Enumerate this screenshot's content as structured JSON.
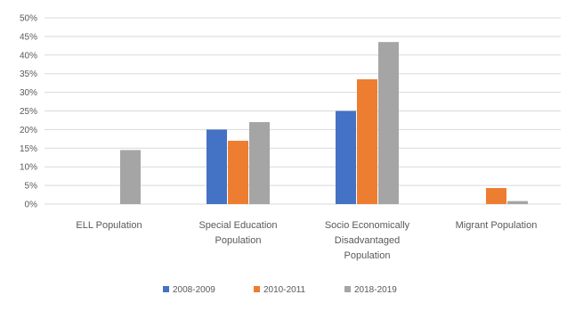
{
  "chart_data": {
    "type": "bar",
    "title": "",
    "xlabel": "",
    "ylabel": "",
    "ylim": [
      0,
      50
    ],
    "yticks": [
      "0%",
      "5%",
      "10%",
      "15%",
      "20%",
      "25%",
      "30%",
      "35%",
      "40%",
      "45%",
      "50%"
    ],
    "categories": [
      [
        "ELL Population"
      ],
      [
        "Special Education",
        "Population"
      ],
      [
        "Socio Economically",
        "Disadvantaged",
        "Population"
      ],
      [
        "Migrant Population"
      ]
    ],
    "series": [
      {
        "name": "2008-2009",
        "color": "#4472C4",
        "values": [
          0,
          20,
          25,
          0
        ]
      },
      {
        "name": "2010-2011",
        "color": "#ED7D31",
        "values": [
          0,
          17,
          33.5,
          4.3
        ]
      },
      {
        "name": "2018-2019",
        "color": "#A5A5A5",
        "values": [
          14.5,
          22,
          43.5,
          0.8
        ]
      }
    ],
    "grid": true,
    "legend_position": "bottom"
  }
}
